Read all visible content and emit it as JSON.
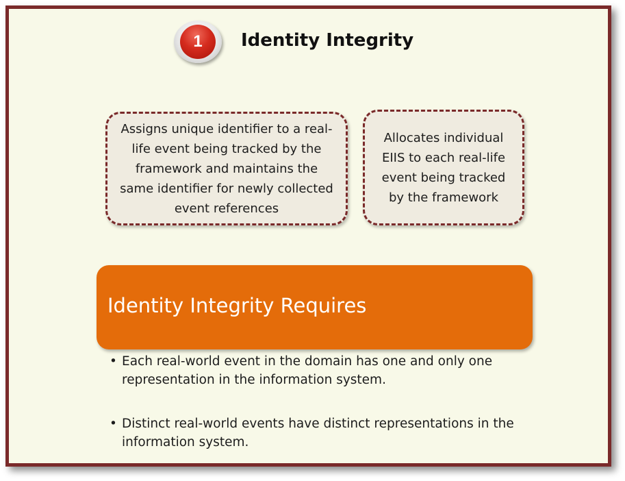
{
  "badge": {
    "number": "1"
  },
  "title": "Identity Integrity",
  "boxes": [
    {
      "text": "Assigns unique identifier to a real-life event being tracked by the framework and maintains the same identifier for newly collected event references"
    },
    {
      "text": "Allocates  individual EIIS to each real-life event being tracked by the framework"
    }
  ],
  "banner": {
    "text": "Identity Integrity Requires"
  },
  "bullets": [
    {
      "marker": "•",
      "text": "Each real-world event in the domain has one and only one representation in the information system."
    },
    {
      "marker": "•",
      "text": "Distinct real-world events have distinct representations in the information system."
    }
  ],
  "colors": {
    "frame_border": "#7a2a2a",
    "background": "#f8f9e8",
    "banner": "#e46c0a",
    "badge": "#d42b1e",
    "box_fill": "#efebe0"
  }
}
